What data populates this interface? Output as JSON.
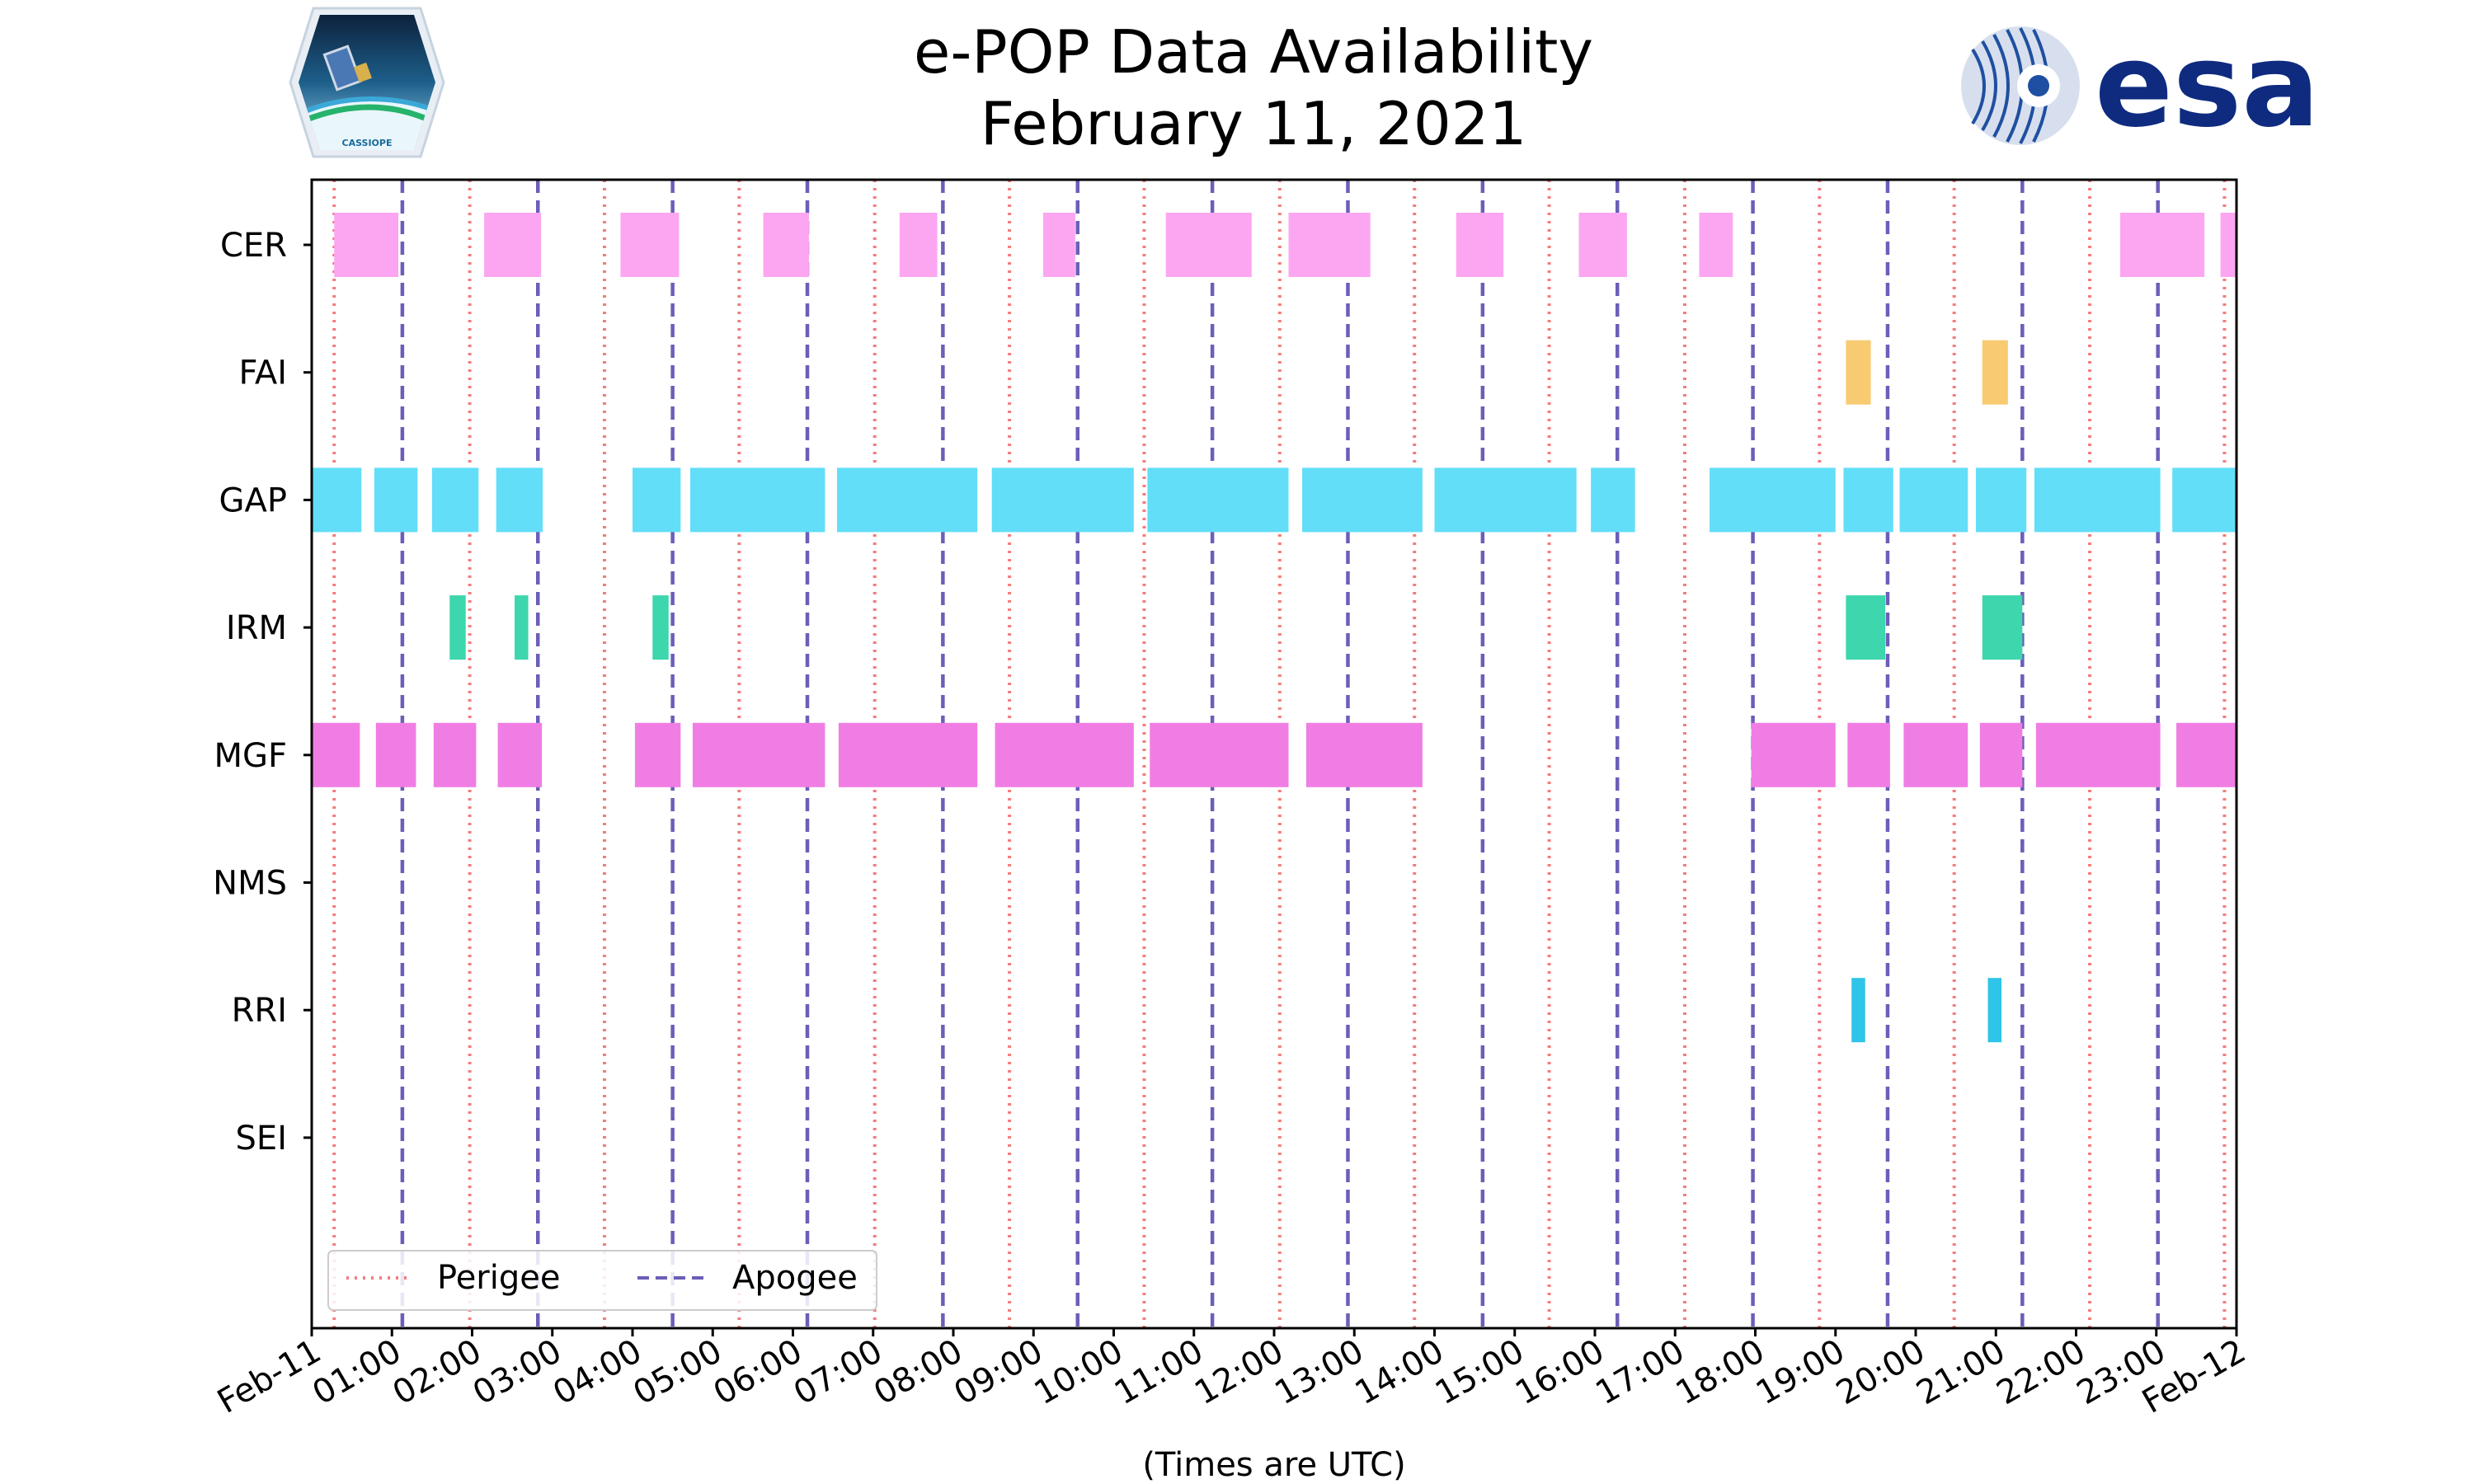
{
  "chart_data": {
    "type": "timeline",
    "title": "e-POP Data Availability",
    "subtitle": "February 11, 2021",
    "xlabel": "(Times are UTC)",
    "xlim_hours": [
      0,
      24
    ],
    "x_tick_labels": [
      "Feb-11",
      "01:00",
      "02:00",
      "03:00",
      "04:00",
      "05:00",
      "06:00",
      "07:00",
      "08:00",
      "09:00",
      "10:00",
      "11:00",
      "12:00",
      "13:00",
      "14:00",
      "15:00",
      "16:00",
      "17:00",
      "18:00",
      "19:00",
      "20:00",
      "21:00",
      "22:00",
      "23:00",
      "Feb-12"
    ],
    "instruments": [
      "CER",
      "FAI",
      "GAP",
      "IRM",
      "MGF",
      "NMS",
      "RRI",
      "SEI"
    ],
    "colors": {
      "CER": "#fca6f2",
      "FAI": "#f8cb72",
      "GAP": "#62def8",
      "IRM": "#3dd6ad",
      "MGF": "#f07de4",
      "NMS": "#999999",
      "RRI": "#2ec5e8",
      "SEI": "#999999",
      "perigee": "#f47c7c",
      "apogee": "#6a5fb8",
      "axis": "#000000"
    },
    "intervals": {
      "CER": [
        [
          0.28,
          1.08
        ],
        [
          2.15,
          2.86
        ],
        [
          3.85,
          4.58
        ],
        [
          5.63,
          6.2
        ],
        [
          7.33,
          7.8
        ],
        [
          9.12,
          9.52
        ],
        [
          10.65,
          11.72
        ],
        [
          12.18,
          13.2
        ],
        [
          14.27,
          14.86
        ],
        [
          15.8,
          16.4
        ],
        [
          17.3,
          17.72
        ],
        [
          22.55,
          23.6
        ],
        [
          23.8,
          24.0
        ]
      ],
      "FAI": [
        [
          19.13,
          19.44
        ],
        [
          20.83,
          21.15
        ]
      ],
      "GAP": [
        [
          0.0,
          0.62
        ],
        [
          0.78,
          1.32
        ],
        [
          1.5,
          2.08
        ],
        [
          2.3,
          2.88
        ],
        [
          4.0,
          4.6
        ],
        [
          4.72,
          6.4
        ],
        [
          6.55,
          8.3
        ],
        [
          8.48,
          10.25
        ],
        [
          10.42,
          12.18
        ],
        [
          12.35,
          13.85
        ],
        [
          14.0,
          15.77
        ],
        [
          15.95,
          16.5
        ],
        [
          17.43,
          19.0
        ],
        [
          19.1,
          19.72
        ],
        [
          19.8,
          20.65
        ],
        [
          20.75,
          21.38
        ],
        [
          21.48,
          23.05
        ],
        [
          23.2,
          24.0
        ]
      ],
      "IRM": [
        [
          1.72,
          1.92
        ],
        [
          2.53,
          2.7
        ],
        [
          4.25,
          4.45
        ],
        [
          19.13,
          19.62
        ],
        [
          20.83,
          21.33
        ]
      ],
      "MGF": [
        [
          0.0,
          0.6
        ],
        [
          0.8,
          1.3
        ],
        [
          1.52,
          2.05
        ],
        [
          2.32,
          2.87
        ],
        [
          4.03,
          4.6
        ],
        [
          4.75,
          6.4
        ],
        [
          6.57,
          8.3
        ],
        [
          8.52,
          10.25
        ],
        [
          10.45,
          12.18
        ],
        [
          12.4,
          13.85
        ],
        [
          17.95,
          19.0
        ],
        [
          19.15,
          19.68
        ],
        [
          19.85,
          20.65
        ],
        [
          20.8,
          21.33
        ],
        [
          21.5,
          23.05
        ],
        [
          23.25,
          24.0
        ]
      ],
      "NMS": [],
      "RRI": [
        [
          19.2,
          19.37
        ],
        [
          20.9,
          21.07
        ]
      ],
      "SEI": []
    },
    "perigee_hours": [
      0.28,
      1.97,
      3.65,
      5.33,
      7.02,
      8.7,
      10.38,
      12.07,
      13.75,
      15.43,
      17.12,
      18.8,
      20.48,
      22.17,
      23.85
    ],
    "apogee_hours": [
      1.13,
      2.82,
      4.5,
      6.18,
      7.87,
      9.55,
      11.23,
      12.92,
      14.6,
      16.28,
      17.97,
      19.65,
      21.33,
      23.02
    ],
    "legend": {
      "position": "lower-left",
      "entries": [
        "Perigee",
        "Apogee"
      ]
    }
  },
  "logos": {
    "left_caption": "CASSIOPE",
    "right_text": "esa"
  }
}
